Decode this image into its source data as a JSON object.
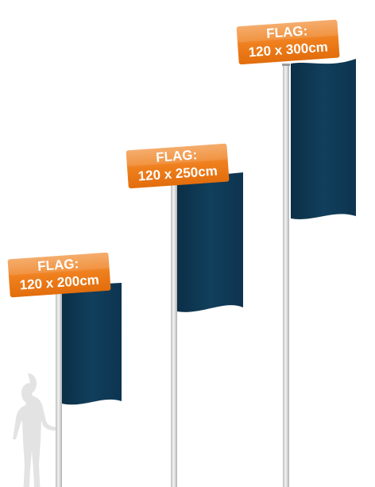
{
  "colors": {
    "flag": "#0f3a55",
    "sign_orange": "#f07f1a",
    "pole": "#e6e6e6",
    "silhouette": "#e3e3e3"
  },
  "flags": [
    {
      "line1": "FLAG:",
      "line2": "120 x 200cm"
    },
    {
      "line1": "FLAG:",
      "line2": "120 x 250cm"
    },
    {
      "line1": "FLAG:",
      "line2": "120 x 300cm"
    }
  ],
  "reference": {
    "icon": "person-silhouette-icon"
  }
}
